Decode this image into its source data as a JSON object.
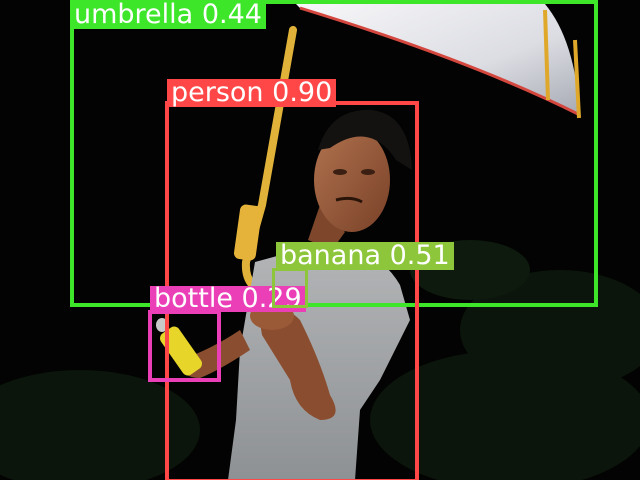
{
  "detections": [
    {
      "label": "umbrella",
      "score": "0.44",
      "color": "#3ee62a"
    },
    {
      "label": "person",
      "score": "0.90",
      "color": "#ff4747"
    },
    {
      "label": "banana",
      "score": "0.51",
      "color": "#8dc63a"
    },
    {
      "label": "bottle",
      "score": "0.29",
      "color": "#ea3fb7"
    }
  ]
}
